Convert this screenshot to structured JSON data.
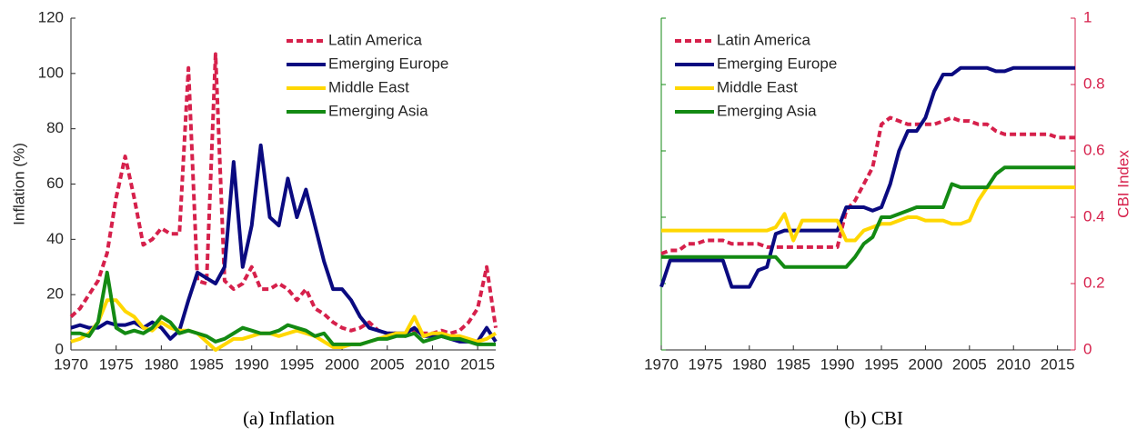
{
  "chart_data": [
    {
      "type": "line",
      "caption": "(a) Inflation",
      "ylabel": "Inflation (%)",
      "y_axis_side": "left",
      "legend": "upper right",
      "x": [
        1970,
        1971,
        1972,
        1973,
        1974,
        1975,
        1976,
        1977,
        1978,
        1979,
        1980,
        1981,
        1982,
        1983,
        1984,
        1985,
        1986,
        1987,
        1988,
        1989,
        1990,
        1991,
        1992,
        1993,
        1994,
        1995,
        1996,
        1997,
        1998,
        1999,
        2000,
        2001,
        2002,
        2003,
        2004,
        2005,
        2006,
        2007,
        2008,
        2009,
        2010,
        2011,
        2012,
        2013,
        2014,
        2015,
        2016,
        2017
      ],
      "xlim": [
        1970,
        2017
      ],
      "xticks": [
        1970,
        1975,
        1980,
        1985,
        1990,
        1995,
        2000,
        2005,
        2010,
        2015
      ],
      "ylim": [
        0,
        120
      ],
      "yticks": [
        0,
        20,
        40,
        60,
        80,
        100,
        120
      ],
      "series": [
        {
          "name": "Latin America",
          "color": "#d6204b",
          "line_style": "dashed",
          "values": [
            12,
            15,
            20,
            25,
            35,
            55,
            70,
            55,
            38,
            40,
            44,
            42,
            42,
            102,
            25,
            24,
            107,
            25,
            22,
            24,
            30,
            22,
            22,
            24,
            22,
            18,
            22,
            15,
            13,
            10,
            8,
            7,
            8,
            10,
            7,
            6,
            6,
            5,
            7,
            6,
            6,
            7,
            6,
            7,
            10,
            15,
            30,
            8
          ]
        },
        {
          "name": "Emerging Europe",
          "color": "#0a0a80",
          "line_style": "solid",
          "values": [
            8,
            9,
            8,
            8,
            10,
            9,
            9,
            10,
            8,
            10,
            8,
            4,
            7,
            18,
            28,
            26,
            24,
            30,
            68,
            30,
            45,
            74,
            48,
            45,
            62,
            48,
            58,
            45,
            32,
            22,
            22,
            18,
            12,
            8,
            7,
            6,
            6,
            6,
            8,
            5,
            5,
            5,
            4,
            3,
            3,
            3,
            8,
            3
          ]
        },
        {
          "name": "Middle East",
          "color": "#ffd700",
          "line_style": "solid",
          "values": [
            3,
            4,
            6,
            10,
            18,
            18,
            14,
            12,
            8,
            7,
            10,
            8,
            7,
            7,
            6,
            3,
            0,
            2,
            4,
            4,
            5,
            6,
            6,
            5,
            6,
            7,
            6,
            5,
            3,
            1,
            1,
            2,
            2,
            3,
            4,
            5,
            6,
            6,
            12,
            5,
            6,
            6,
            5,
            5,
            4,
            3,
            4,
            6
          ]
        },
        {
          "name": "Emerging Asia",
          "color": "#138a13",
          "line_style": "solid",
          "values": [
            6,
            6,
            5,
            10,
            28,
            8,
            6,
            7,
            6,
            8,
            12,
            10,
            6,
            7,
            6,
            5,
            3,
            4,
            6,
            8,
            7,
            6,
            6,
            7,
            9,
            8,
            7,
            5,
            6,
            2,
            2,
            2,
            2,
            3,
            4,
            4,
            5,
            5,
            6,
            3,
            4,
            5,
            4,
            4,
            3,
            2,
            2,
            2
          ]
        }
      ]
    },
    {
      "type": "line",
      "caption": "(b) CBI",
      "ylabel": "CBI Index",
      "y_axis_side": "right",
      "y_axis_color": "#d6204b",
      "legend": "upper left",
      "x": [
        1970,
        1971,
        1972,
        1973,
        1974,
        1975,
        1976,
        1977,
        1978,
        1979,
        1980,
        1981,
        1982,
        1983,
        1984,
        1985,
        1986,
        1987,
        1988,
        1989,
        1990,
        1991,
        1992,
        1993,
        1994,
        1995,
        1996,
        1997,
        1998,
        1999,
        2000,
        2001,
        2002,
        2003,
        2004,
        2005,
        2006,
        2007,
        2008,
        2009,
        2010,
        2011,
        2012,
        2013,
        2014,
        2015,
        2016,
        2017
      ],
      "xlim": [
        1970,
        2017
      ],
      "xticks": [
        1970,
        1975,
        1980,
        1985,
        1990,
        1995,
        2000,
        2005,
        2010,
        2015
      ],
      "ylim": [
        0,
        1
      ],
      "yticks": [
        0,
        0.2,
        0.4,
        0.6,
        0.8,
        1
      ],
      "series": [
        {
          "name": "Latin America",
          "color": "#d6204b",
          "line_style": "dashed",
          "values": [
            0.29,
            0.3,
            0.3,
            0.32,
            0.32,
            0.33,
            0.33,
            0.33,
            0.32,
            0.32,
            0.32,
            0.32,
            0.31,
            0.31,
            0.31,
            0.31,
            0.31,
            0.31,
            0.31,
            0.31,
            0.31,
            0.42,
            0.45,
            0.5,
            0.55,
            0.68,
            0.7,
            0.69,
            0.68,
            0.68,
            0.68,
            0.68,
            0.69,
            0.7,
            0.69,
            0.69,
            0.68,
            0.68,
            0.66,
            0.65,
            0.65,
            0.65,
            0.65,
            0.65,
            0.65,
            0.64,
            0.64,
            0.64
          ]
        },
        {
          "name": "Emerging Europe",
          "color": "#0a0a80",
          "line_style": "solid",
          "values": [
            0.19,
            0.27,
            0.27,
            0.27,
            0.27,
            0.27,
            0.27,
            0.27,
            0.19,
            0.19,
            0.19,
            0.24,
            0.25,
            0.35,
            0.36,
            0.36,
            0.36,
            0.36,
            0.36,
            0.36,
            0.36,
            0.43,
            0.43,
            0.43,
            0.42,
            0.43,
            0.5,
            0.6,
            0.66,
            0.66,
            0.7,
            0.78,
            0.83,
            0.83,
            0.85,
            0.85,
            0.85,
            0.85,
            0.84,
            0.84,
            0.85,
            0.85,
            0.85,
            0.85,
            0.85,
            0.85,
            0.85,
            0.85
          ]
        },
        {
          "name": "Middle East",
          "color": "#ffd700",
          "line_style": "solid",
          "values": [
            0.36,
            0.36,
            0.36,
            0.36,
            0.36,
            0.36,
            0.36,
            0.36,
            0.36,
            0.36,
            0.36,
            0.36,
            0.36,
            0.37,
            0.41,
            0.33,
            0.39,
            0.39,
            0.39,
            0.39,
            0.39,
            0.33,
            0.33,
            0.36,
            0.37,
            0.38,
            0.38,
            0.39,
            0.4,
            0.4,
            0.39,
            0.39,
            0.39,
            0.38,
            0.38,
            0.39,
            0.45,
            0.49,
            0.49,
            0.49,
            0.49,
            0.49,
            0.49,
            0.49,
            0.49,
            0.49,
            0.49,
            0.49
          ]
        },
        {
          "name": "Emerging Asia",
          "color": "#138a13",
          "line_style": "solid",
          "values": [
            0.28,
            0.28,
            0.28,
            0.28,
            0.28,
            0.28,
            0.28,
            0.28,
            0.28,
            0.28,
            0.28,
            0.28,
            0.28,
            0.28,
            0.25,
            0.25,
            0.25,
            0.25,
            0.25,
            0.25,
            0.25,
            0.25,
            0.28,
            0.32,
            0.34,
            0.4,
            0.4,
            0.41,
            0.42,
            0.43,
            0.43,
            0.43,
            0.43,
            0.5,
            0.49,
            0.49,
            0.49,
            0.49,
            0.53,
            0.55,
            0.55,
            0.55,
            0.55,
            0.55,
            0.55,
            0.55,
            0.55,
            0.55
          ]
        }
      ]
    }
  ]
}
